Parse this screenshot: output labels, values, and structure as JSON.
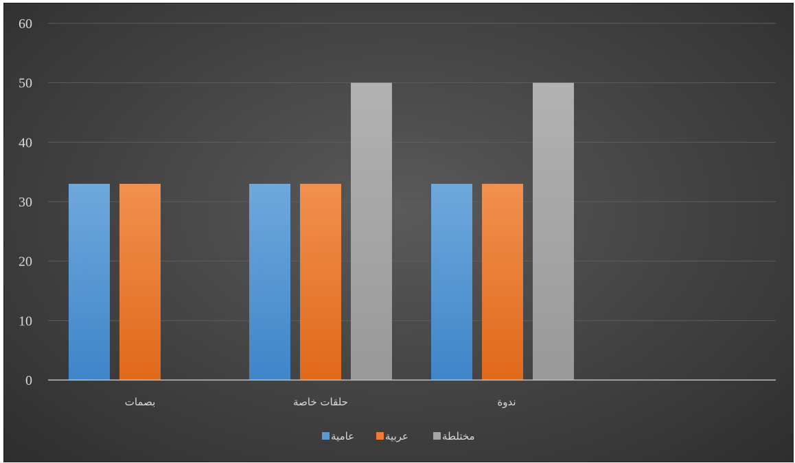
{
  "chart_data": {
    "type": "bar",
    "categories": [
      "بصمات",
      "حلقات خاصة",
      "ندوة"
    ],
    "series": [
      {
        "name": "عامية",
        "values": [
          33,
          33,
          33
        ],
        "color": "#5b9bd5"
      },
      {
        "name": "عربية",
        "values": [
          33,
          33,
          33
        ],
        "color": "#ed7d31"
      },
      {
        "name": "مختلطة",
        "values": [
          0,
          50,
          50
        ],
        "color": "#a5a5a5"
      }
    ],
    "y_ticks": [
      "0",
      "10",
      "20",
      "30",
      "40",
      "50",
      "60"
    ],
    "ylim": [
      0,
      60
    ],
    "grid": true,
    "legend_position": "bottom"
  }
}
